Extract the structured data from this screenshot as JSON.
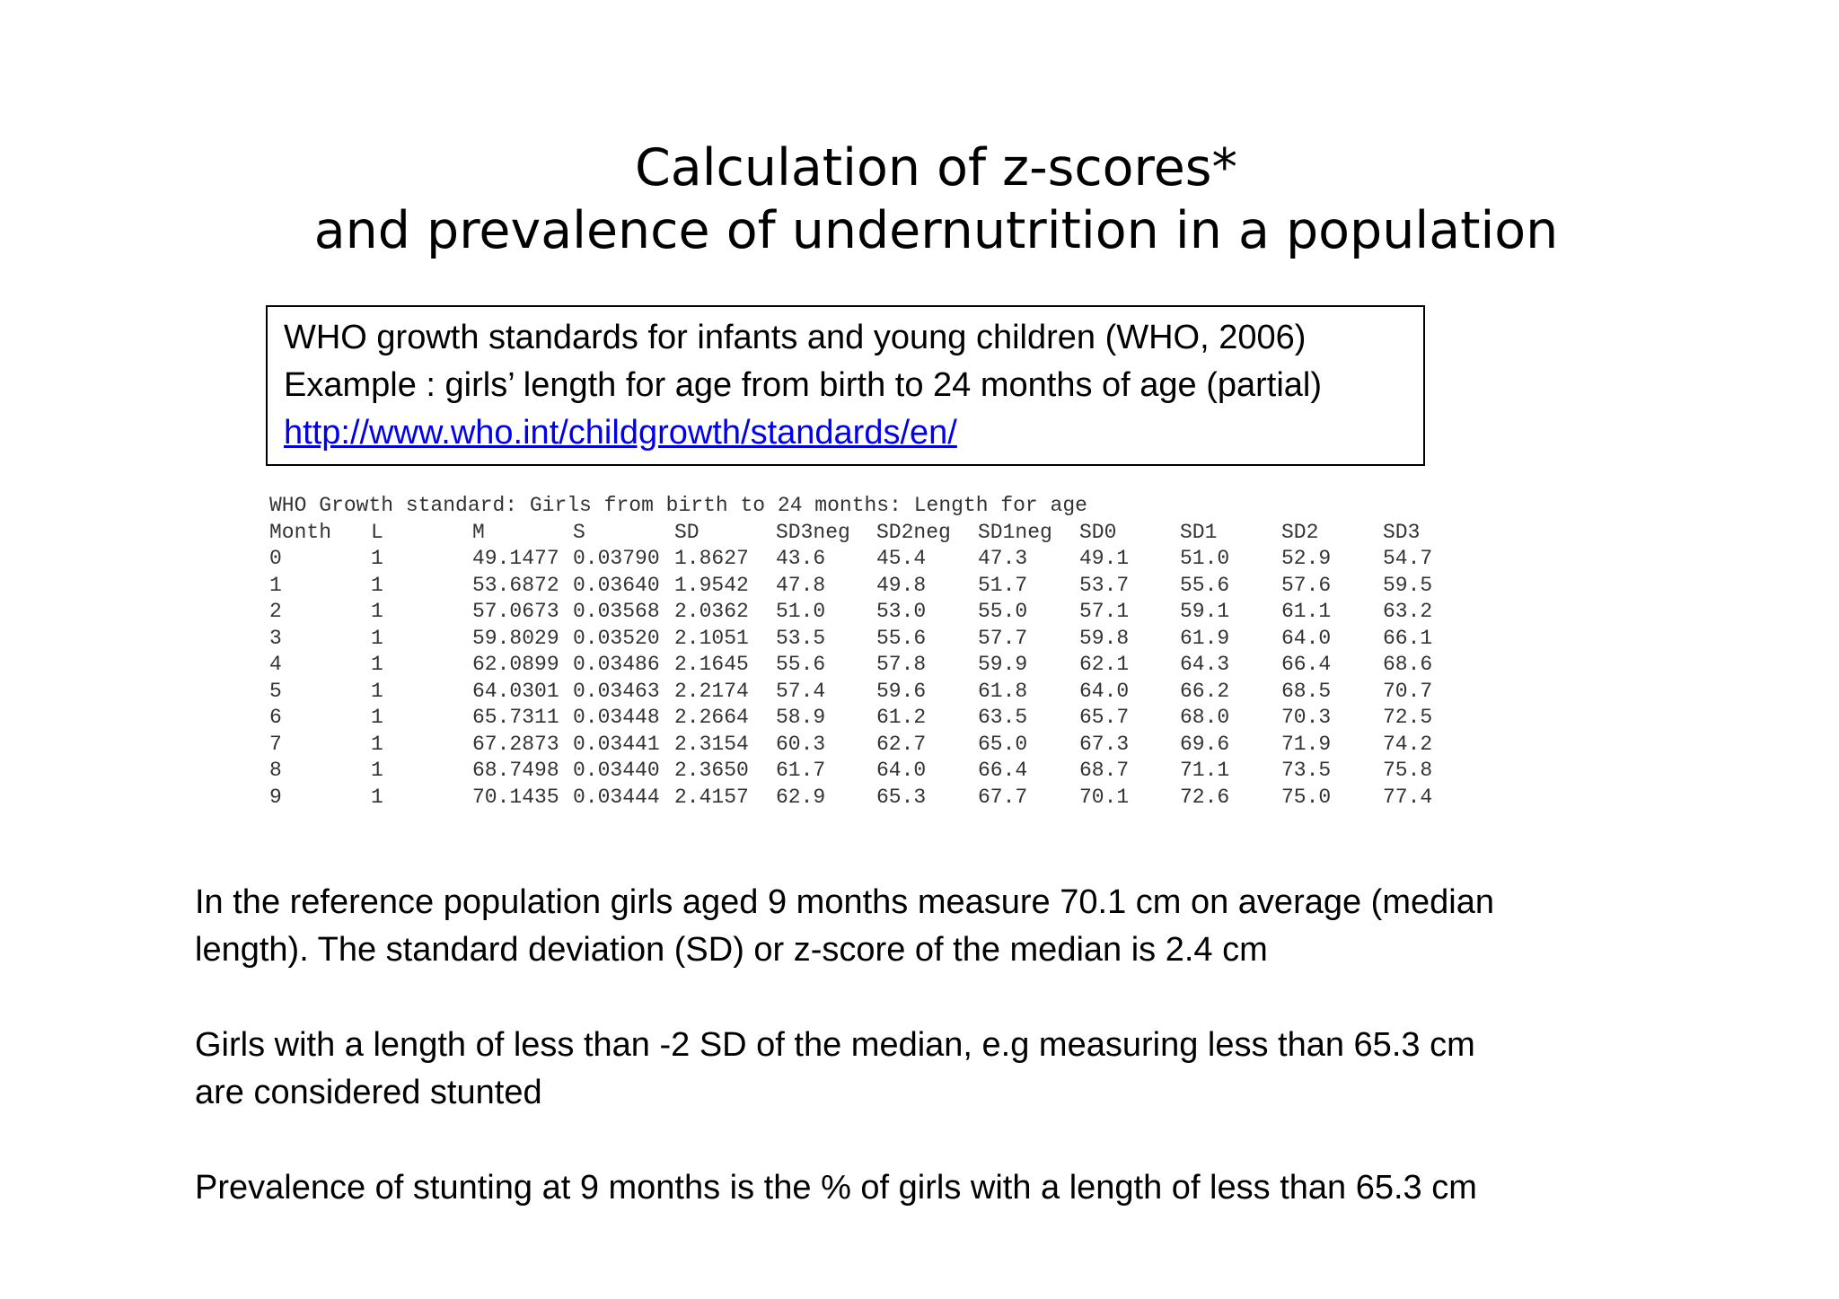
{
  "title": {
    "line1": "Calculation of z-scores*",
    "line2": "and prevalence of undernutrition in a population"
  },
  "source_box": {
    "line1": "WHO growth standards for infants and young children (WHO, 2006)",
    "line2": "Example : girls’ length for age from birth to 24 months of age (partial)",
    "link": "http://www.who.int/childgrowth/standards/en/"
  },
  "who_table": {
    "caption": "WHO Growth standard: Girls from birth to 24 months: Length for age",
    "headers": [
      "Month",
      "L",
      "M",
      "S",
      "SD",
      "SD3neg",
      "SD2neg",
      "SD1neg",
      "SD0",
      "SD1",
      "SD2",
      "SD3"
    ],
    "rows": [
      [
        "0",
        "1",
        "49.1477",
        "0.03790",
        "1.8627",
        "43.6",
        "45.4",
        "47.3",
        "49.1",
        "51.0",
        "52.9",
        "54.7"
      ],
      [
        "1",
        "1",
        "53.6872",
        "0.03640",
        "1.9542",
        "47.8",
        "49.8",
        "51.7",
        "53.7",
        "55.6",
        "57.6",
        "59.5"
      ],
      [
        "2",
        "1",
        "57.0673",
        "0.03568",
        "2.0362",
        "51.0",
        "53.0",
        "55.0",
        "57.1",
        "59.1",
        "61.1",
        "63.2"
      ],
      [
        "3",
        "1",
        "59.8029",
        "0.03520",
        "2.1051",
        "53.5",
        "55.6",
        "57.7",
        "59.8",
        "61.9",
        "64.0",
        "66.1"
      ],
      [
        "4",
        "1",
        "62.0899",
        "0.03486",
        "2.1645",
        "55.6",
        "57.8",
        "59.9",
        "62.1",
        "64.3",
        "66.4",
        "68.6"
      ],
      [
        "5",
        "1",
        "64.0301",
        "0.03463",
        "2.2174",
        "57.4",
        "59.6",
        "61.8",
        "64.0",
        "66.2",
        "68.5",
        "70.7"
      ],
      [
        "6",
        "1",
        "65.7311",
        "0.03448",
        "2.2664",
        "58.9",
        "61.2",
        "63.5",
        "65.7",
        "68.0",
        "70.3",
        "72.5"
      ],
      [
        "7",
        "1",
        "67.2873",
        "0.03441",
        "2.3154",
        "60.3",
        "62.7",
        "65.0",
        "67.3",
        "69.6",
        "71.9",
        "74.2"
      ],
      [
        "8",
        "1",
        "68.7498",
        "0.03440",
        "2.3650",
        "61.7",
        "64.0",
        "66.4",
        "68.7",
        "71.1",
        "73.5",
        "75.8"
      ],
      [
        "9",
        "1",
        "70.1435",
        "0.03444",
        "2.4157",
        "62.9",
        "65.3",
        "67.7",
        "70.1",
        "72.6",
        "75.0",
        "77.4"
      ]
    ]
  },
  "paragraphs": {
    "p1_line1": "In the reference population girls aged 9 months measure 70.1 cm on average (median",
    "p1_line2": "length). The standard deviation (SD) or z-score of the median is 2.4 cm",
    "p2_line1": "Girls with a length of less than -2 SD of the median, e.g measuring less than 65.3 cm",
    "p2_line2": "are considered stunted",
    "p3_line1": "Prevalence of stunting at 9 months is the % of girls with a length of less than 65.3 cm"
  }
}
